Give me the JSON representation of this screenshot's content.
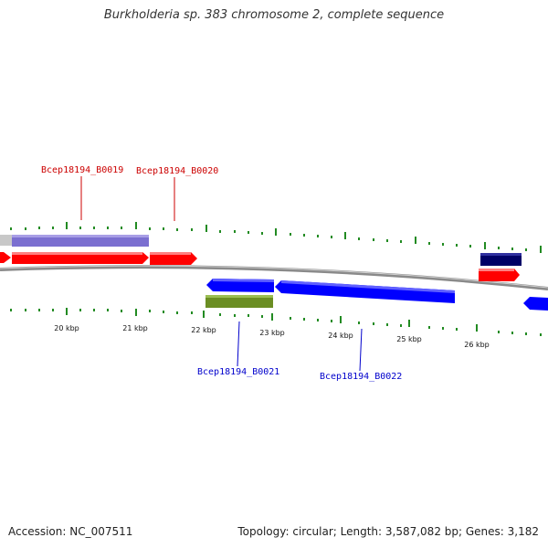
{
  "title": "Burkholderia sp. 383 chromosome 2, complete sequence",
  "footer": {
    "accession": "Accession: NC_007511",
    "summary": "Topology: circular; Length: 3,587,082 bp; Genes: 3,182"
  },
  "colors": {
    "forward_gene": "#ff0000",
    "reverse_gene": "#0000ff",
    "purple_feature": "#7b6fd0",
    "olive_feature": "#6b8e23",
    "navy_feature": "#000066",
    "gray_feature": "#c0c0c0",
    "tick": "#228b22",
    "backbone": "#808080",
    "forward_label": "#cc0000",
    "reverse_label": "#0000cc"
  },
  "scale": {
    "unit": "kbp",
    "labels": [
      "20 kbp",
      "21 kbp",
      "22 kbp",
      "23 kbp",
      "24 kbp",
      "25 kbp",
      "26 kbp"
    ]
  },
  "gene_labels": {
    "b0019": "Bcep18194_B0019",
    "b0020": "Bcep18194_B0020",
    "b0021": "Bcep18194_B0021",
    "b0022": "Bcep18194_B0022"
  }
}
